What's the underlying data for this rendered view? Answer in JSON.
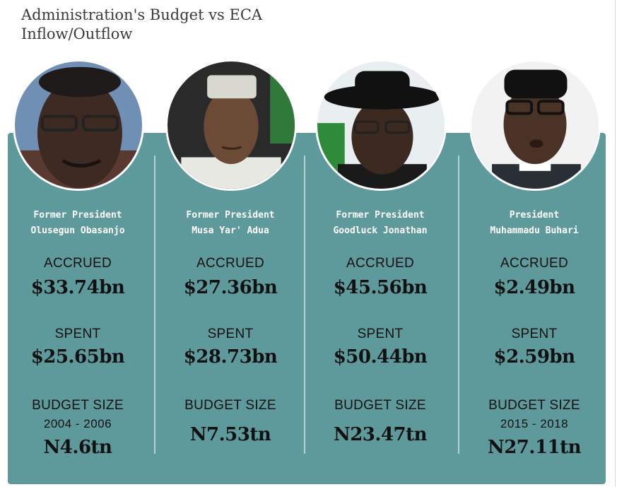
{
  "title": {
    "line1": "Administration's Budget vs ECA",
    "line2": "Inflow/Outflow"
  },
  "colors": {
    "panel": "#5e9a9b",
    "divider": "#a9cccc",
    "text_dark": "#111111",
    "text_light": "#ffffff"
  },
  "presidents": [
    {
      "role": "Former President",
      "name": "Olusegun Obasanjo",
      "accrued_label": "ACCRUED",
      "accrued_value": "$33.74bn",
      "spent_label": "SPENT",
      "spent_value": "$25.65bn",
      "budget_label": "BUDGET SIZE",
      "budget_years": "2004 - 2006",
      "budget_value": "N4.6tn",
      "portrait_icon": "portrait-obasanjo"
    },
    {
      "role": "Former President",
      "name": "Musa Yar' Adua",
      "accrued_label": "ACCRUED",
      "accrued_value": "$27.36bn",
      "spent_label": "SPENT",
      "spent_value": "$28.73bn",
      "budget_label": "BUDGET SIZE",
      "budget_years": "",
      "budget_value": "N7.53tn",
      "portrait_icon": "portrait-yaradua"
    },
    {
      "role": "Former President",
      "name": "Goodluck Jonathan",
      "accrued_label": "ACCRUED",
      "accrued_value": "$45.56bn",
      "spent_label": "SPENT",
      "spent_value": "$50.44bn",
      "budget_label": "BUDGET SIZE",
      "budget_years": "",
      "budget_value": "N23.47tn",
      "portrait_icon": "portrait-jonathan"
    },
    {
      "role": "President",
      "name": "Muhammadu Buhari",
      "accrued_label": "ACCRUED",
      "accrued_value": "$2.49bn",
      "spent_label": "SPENT",
      "spent_value": "$2.59bn",
      "budget_label": "BUDGET SIZE",
      "budget_years": "2015 - 2018",
      "budget_value": "N27.11tn",
      "portrait_icon": "portrait-buhari"
    }
  ]
}
